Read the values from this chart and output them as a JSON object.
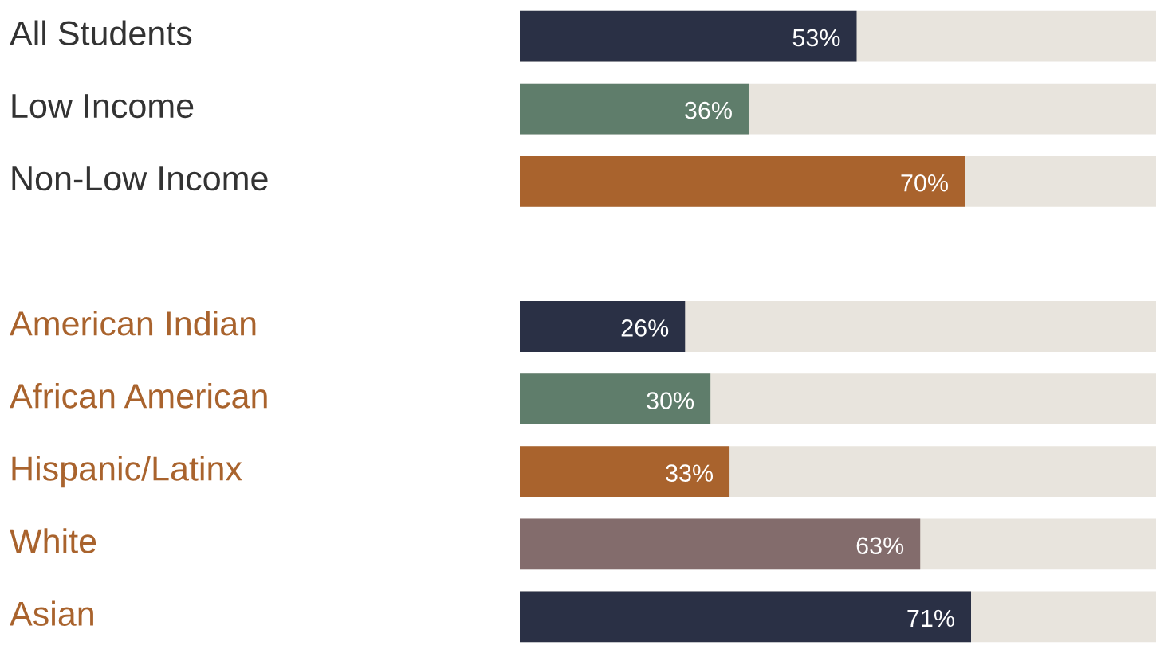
{
  "chart_data": {
    "type": "bar",
    "orientation": "horizontal",
    "categories": [
      "All Students",
      "Low Income",
      "Non-Low Income",
      null,
      "American Indian",
      "African American",
      "Hispanic/Latinx",
      "White",
      "Asian"
    ],
    "values": [
      53,
      36,
      70,
      null,
      26,
      30,
      33,
      63,
      71
    ],
    "value_labels": [
      "53%",
      "36%",
      "70%",
      null,
      "26%",
      "30%",
      "33%",
      "63%",
      "71%"
    ],
    "colors": [
      "#2a3045",
      "#5f7d6b",
      "#a9632d",
      "#ffffff",
      "#2a3045",
      "#5f7d6b",
      "#a9632d",
      "#836c6c",
      "#2a3045"
    ],
    "tick_labels": "y"
  }
}
